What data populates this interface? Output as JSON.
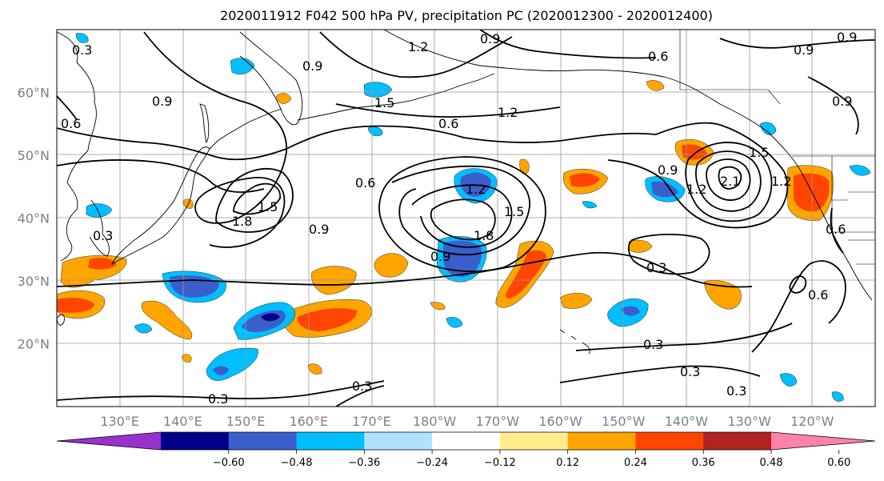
{
  "title": "2020011912 F042 500 hPa PV, precipitation PC (2020012300 - 2020012400)",
  "map": {
    "lat_labels": [
      {
        "lat": 60,
        "text": "60°N"
      },
      {
        "lat": 50,
        "text": "50°N"
      },
      {
        "lat": 40,
        "text": "40°N"
      },
      {
        "lat": 30,
        "text": "30°N"
      },
      {
        "lat": 20,
        "text": "20°N"
      }
    ],
    "lon_labels": [
      {
        "lon": 130,
        "text": "130°E"
      },
      {
        "lon": 140,
        "text": "140°E"
      },
      {
        "lon": 150,
        "text": "150°E"
      },
      {
        "lon": 160,
        "text": "160°E"
      },
      {
        "lon": 170,
        "text": "170°E"
      },
      {
        "lon": 180,
        "text": "180°W"
      },
      {
        "lon": 190,
        "text": "170°W"
      },
      {
        "lon": 200,
        "text": "160°W"
      },
      {
        "lon": 210,
        "text": "150°W"
      },
      {
        "lon": 220,
        "text": "140°W"
      },
      {
        "lon": 230,
        "text": "130°W"
      },
      {
        "lon": 240,
        "text": "120°W"
      }
    ],
    "lon_range": [
      120,
      250
    ],
    "lat_range": [
      10,
      70
    ],
    "grid": true,
    "contour_labels": [
      "0.3",
      "0.6",
      "0.9",
      "1.2",
      "1.5",
      "1.8",
      "2.1"
    ]
  },
  "colorbar": {
    "ticks": [
      "−0.60",
      "−0.48",
      "−0.36",
      "−0.24",
      "−0.12",
      "0.12",
      "0.24",
      "0.36",
      "0.48",
      "0.60"
    ],
    "colors": [
      "#9932cc",
      "#00008b",
      "#3a5fcd",
      "#00bfff",
      "#b0e2ff",
      "#ffffff",
      "#ffec8b",
      "#ffa500",
      "#ff4500",
      "#b22222",
      "#ff82ab"
    ]
  }
}
